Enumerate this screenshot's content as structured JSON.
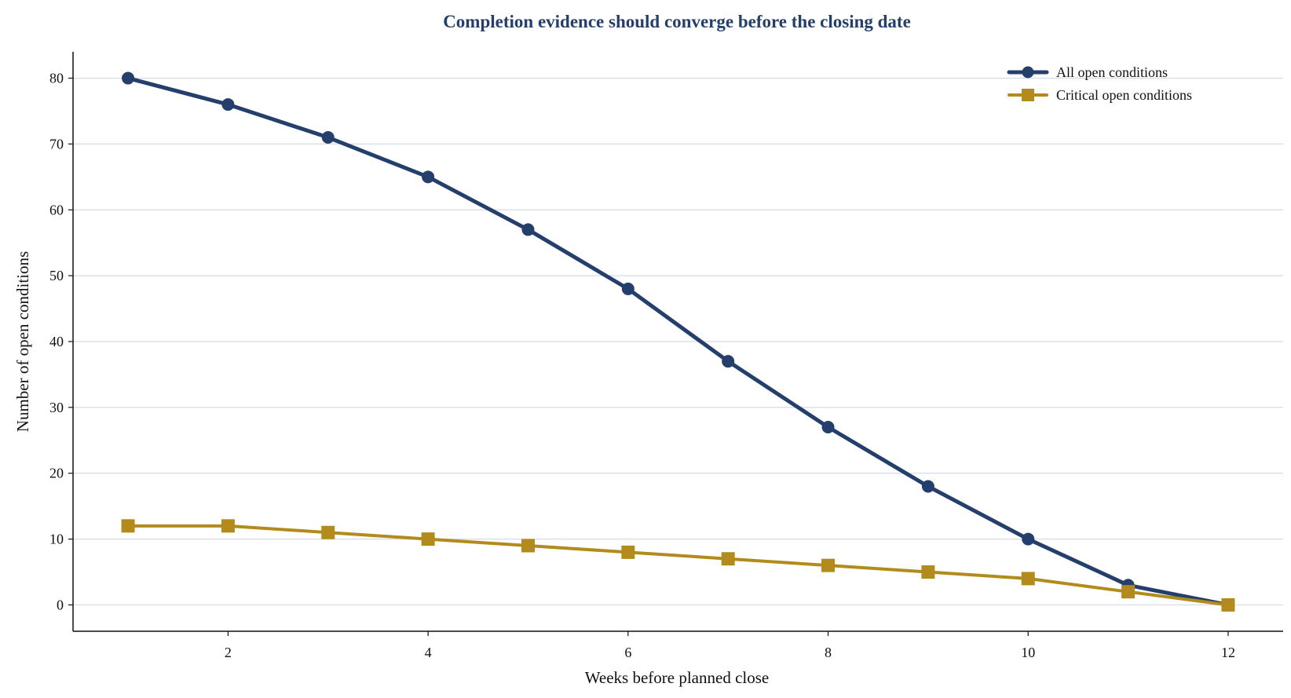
{
  "chart_data": {
    "type": "line",
    "title": "Completion evidence should converge before the closing date",
    "xlabel": "Weeks before planned close",
    "ylabel": "Number of open conditions",
    "x": [
      1,
      2,
      3,
      4,
      5,
      6,
      7,
      8,
      9,
      10,
      11,
      12
    ],
    "xlim": [
      0.45,
      12.55
    ],
    "ylim": [
      -4,
      84
    ],
    "xticks": [
      2,
      4,
      6,
      8,
      10,
      12
    ],
    "yticks": [
      0,
      10,
      20,
      30,
      40,
      50,
      60,
      70,
      80
    ],
    "grid": "horizontal",
    "legend_position": "top-right",
    "series": [
      {
        "name": "All open conditions",
        "values": [
          80,
          76,
          71,
          65,
          57,
          48,
          37,
          27,
          18,
          10,
          3,
          0
        ],
        "color": "#243f6b",
        "marker": "circle"
      },
      {
        "name": "Critical open conditions",
        "values": [
          12,
          12,
          11,
          10,
          9,
          8,
          7,
          6,
          5,
          4,
          2,
          0
        ],
        "color": "#b38a1c",
        "marker": "square"
      }
    ],
    "colors": {
      "title": "#243f6b",
      "grid": "#d3dbe8",
      "axis": "#111111"
    }
  }
}
